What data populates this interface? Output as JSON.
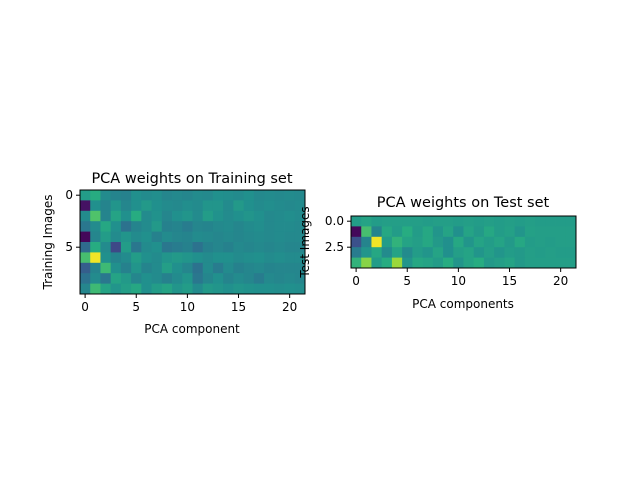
{
  "chart_data": [
    {
      "type": "heatmap",
      "title": "PCA weights on Training set",
      "xlabel": "PCA component",
      "ylabel": "Training Images",
      "rows": 10,
      "cols": 22,
      "colormap": "viridis",
      "xticks": [
        0,
        5,
        10,
        15,
        20
      ],
      "xtick_labels": [
        "0",
        "5",
        "10",
        "15",
        "20"
      ],
      "yticks": [
        0,
        5
      ],
      "ytick_labels": [
        "0",
        "5"
      ],
      "values": [
        [
          0.55,
          0.62,
          0.48,
          0.45,
          0.44,
          0.5,
          0.48,
          0.49,
          0.46,
          0.47,
          0.46,
          0.48,
          0.47,
          0.5,
          0.49,
          0.48,
          0.5,
          0.47,
          0.48,
          0.47,
          0.48,
          0.47
        ],
        [
          0.05,
          0.5,
          0.45,
          0.52,
          0.46,
          0.5,
          0.54,
          0.5,
          0.48,
          0.47,
          0.49,
          0.48,
          0.52,
          0.52,
          0.48,
          0.54,
          0.5,
          0.48,
          0.49,
          0.48,
          0.47,
          0.48
        ],
        [
          0.48,
          0.72,
          0.45,
          0.58,
          0.5,
          0.62,
          0.48,
          0.51,
          0.46,
          0.5,
          0.52,
          0.48,
          0.55,
          0.51,
          0.48,
          0.5,
          0.52,
          0.5,
          0.47,
          0.48,
          0.49,
          0.48
        ],
        [
          0.4,
          0.48,
          0.6,
          0.5,
          0.38,
          0.45,
          0.48,
          0.54,
          0.44,
          0.45,
          0.42,
          0.46,
          0.45,
          0.47,
          0.48,
          0.46,
          0.48,
          0.49,
          0.47,
          0.48,
          0.48,
          0.47
        ],
        [
          0.02,
          0.46,
          0.55,
          0.48,
          0.52,
          0.48,
          0.5,
          0.44,
          0.48,
          0.46,
          0.45,
          0.48,
          0.47,
          0.46,
          0.47,
          0.46,
          0.47,
          0.48,
          0.47,
          0.48,
          0.47,
          0.47
        ],
        [
          0.35,
          0.62,
          0.48,
          0.22,
          0.55,
          0.4,
          0.48,
          0.5,
          0.4,
          0.42,
          0.44,
          0.38,
          0.44,
          0.46,
          0.44,
          0.47,
          0.46,
          0.47,
          0.46,
          0.47,
          0.46,
          0.46
        ],
        [
          0.7,
          0.98,
          0.5,
          0.45,
          0.48,
          0.55,
          0.5,
          0.48,
          0.52,
          0.54,
          0.52,
          0.5,
          0.48,
          0.5,
          0.5,
          0.48,
          0.49,
          0.5,
          0.48,
          0.49,
          0.48,
          0.48
        ],
        [
          0.3,
          0.45,
          0.68,
          0.5,
          0.44,
          0.52,
          0.45,
          0.48,
          0.56,
          0.5,
          0.46,
          0.38,
          0.48,
          0.42,
          0.48,
          0.44,
          0.46,
          0.47,
          0.45,
          0.46,
          0.46,
          0.46
        ],
        [
          0.38,
          0.48,
          0.4,
          0.58,
          0.54,
          0.46,
          0.5,
          0.48,
          0.44,
          0.48,
          0.52,
          0.4,
          0.46,
          0.5,
          0.45,
          0.48,
          0.46,
          0.42,
          0.47,
          0.46,
          0.47,
          0.46
        ],
        [
          0.46,
          0.68,
          0.58,
          0.52,
          0.56,
          0.6,
          0.5,
          0.55,
          0.58,
          0.52,
          0.55,
          0.48,
          0.54,
          0.52,
          0.5,
          0.52,
          0.51,
          0.5,
          0.5,
          0.49,
          0.5,
          0.49
        ]
      ]
    },
    {
      "type": "heatmap",
      "title": "PCA weights on Test set",
      "xlabel": "PCA components",
      "ylabel": "Test Images",
      "rows": 5,
      "cols": 22,
      "colormap": "viridis",
      "xticks": [
        0,
        5,
        10,
        15,
        20
      ],
      "xtick_labels": [
        "0",
        "5",
        "10",
        "15",
        "20"
      ],
      "yticks": [
        0,
        2.5
      ],
      "ytick_labels": [
        "0.0",
        "2.5"
      ],
      "values": [
        [
          0.55,
          0.58,
          0.55,
          0.56,
          0.56,
          0.56,
          0.56,
          0.55,
          0.56,
          0.56,
          0.55,
          0.56,
          0.55,
          0.56,
          0.55,
          0.56,
          0.55,
          0.56,
          0.55,
          0.55,
          0.55,
          0.55
        ],
        [
          0.02,
          0.7,
          0.45,
          0.6,
          0.55,
          0.62,
          0.55,
          0.6,
          0.52,
          0.58,
          0.5,
          0.58,
          0.54,
          0.6,
          0.55,
          0.57,
          0.52,
          0.57,
          0.56,
          0.56,
          0.56,
          0.56
        ],
        [
          0.25,
          0.45,
          0.98,
          0.55,
          0.65,
          0.58,
          0.56,
          0.6,
          0.54,
          0.5,
          0.6,
          0.52,
          0.58,
          0.55,
          0.58,
          0.54,
          0.6,
          0.55,
          0.56,
          0.55,
          0.56,
          0.56
        ],
        [
          0.42,
          0.52,
          0.6,
          0.48,
          0.58,
          0.48,
          0.55,
          0.52,
          0.58,
          0.5,
          0.56,
          0.58,
          0.52,
          0.56,
          0.52,
          0.55,
          0.54,
          0.56,
          0.55,
          0.56,
          0.55,
          0.55
        ],
        [
          0.65,
          0.82,
          0.55,
          0.62,
          0.85,
          0.52,
          0.6,
          0.58,
          0.55,
          0.62,
          0.52,
          0.58,
          0.62,
          0.54,
          0.56,
          0.58,
          0.54,
          0.56,
          0.56,
          0.56,
          0.56,
          0.56
        ]
      ]
    }
  ]
}
